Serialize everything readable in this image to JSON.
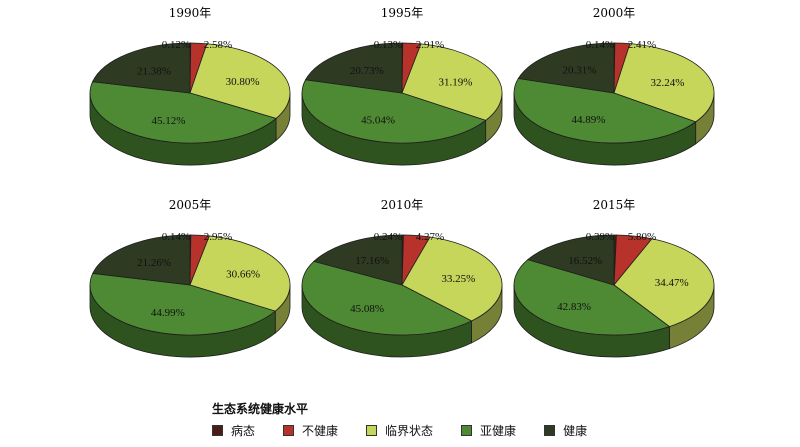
{
  "legend": {
    "title": "生态系统健康水平",
    "items": [
      {
        "label": "病态",
        "color": "#4a1c16"
      },
      {
        "label": "不健康",
        "color": "#b8322c"
      },
      {
        "label": "临界状态",
        "color": "#c5d65a"
      },
      {
        "label": "亚健康",
        "color": "#4e8a34"
      },
      {
        "label": "健康",
        "color": "#2f3a22"
      }
    ]
  },
  "chart_data": [
    {
      "type": "pie",
      "title": "1990年",
      "categories": [
        "病态",
        "不健康",
        "临界状态",
        "亚健康",
        "健康"
      ],
      "values": [
        0.12,
        2.58,
        30.8,
        45.12,
        21.38
      ],
      "labels": [
        "0.12%",
        "2.58%",
        "30.80%",
        "45.12%",
        "21.38%"
      ]
    },
    {
      "type": "pie",
      "title": "1995年",
      "categories": [
        "病态",
        "不健康",
        "临界状态",
        "亚健康",
        "健康"
      ],
      "values": [
        0.13,
        2.91,
        31.19,
        45.04,
        20.73
      ],
      "labels": [
        "0.13%",
        "2.91%",
        "31.19%",
        "45.04%",
        "20.73%"
      ]
    },
    {
      "type": "pie",
      "title": "2000年",
      "categories": [
        "病态",
        "不健康",
        "临界状态",
        "亚健康",
        "健康"
      ],
      "values": [
        0.14,
        2.41,
        32.24,
        44.89,
        20.31
      ],
      "labels": [
        "0.14%",
        "2.41%",
        "32.24%",
        "44.89%",
        "20.31%"
      ]
    },
    {
      "type": "pie",
      "title": "2005年",
      "categories": [
        "病态",
        "不健康",
        "临界状态",
        "亚健康",
        "健康"
      ],
      "values": [
        0.14,
        2.95,
        30.66,
        44.99,
        21.26
      ],
      "labels": [
        "0.14%",
        "2.95%",
        "30.66%",
        "44.99%",
        "21.26%"
      ]
    },
    {
      "type": "pie",
      "title": "2010年",
      "categories": [
        "病态",
        "不健康",
        "临界状态",
        "亚健康",
        "健康"
      ],
      "values": [
        0.24,
        4.27,
        33.25,
        45.08,
        17.16
      ],
      "labels": [
        "0.24%",
        "4.27%",
        "33.25%",
        "45.08%",
        "17.16%"
      ]
    },
    {
      "type": "pie",
      "title": "2015年",
      "categories": [
        "病态",
        "不健康",
        "临界状态",
        "亚健康",
        "健康"
      ],
      "values": [
        0.39,
        5.8,
        34.47,
        42.83,
        16.52
      ],
      "labels": [
        "0.39%",
        "5.80%",
        "34.47%",
        "42.83%",
        "16.52%"
      ]
    }
  ]
}
